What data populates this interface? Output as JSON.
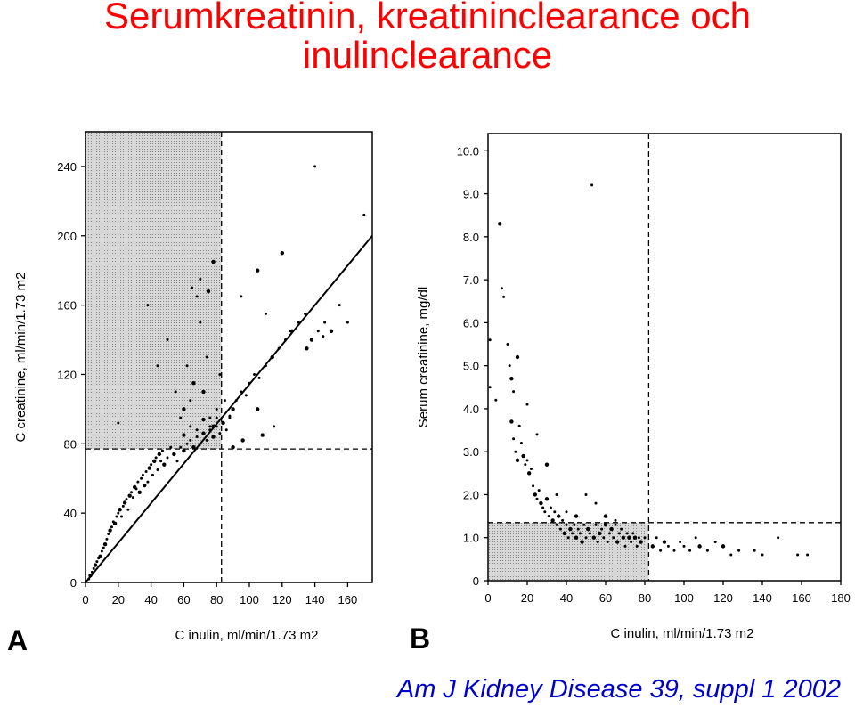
{
  "slide": {
    "title_line1": "Serumkreatinin, kreatininclearance och",
    "title_line2": "inulinclearance",
    "citation": "Am J Kidney Disease 39, suppl 1 2002",
    "title_color": "#ff0000",
    "citation_color": "#0000cc"
  },
  "chart_data": [
    {
      "type": "scatter",
      "panel_label": "A",
      "xlabel": "C inulin, ml/min/1.73 m2",
      "ylabel": "C creatinine, ml/min/1.73 m2",
      "xlim": [
        0,
        175
      ],
      "ylim": [
        0,
        260
      ],
      "x_ticks": [
        0,
        20,
        40,
        60,
        80,
        100,
        120,
        140,
        160
      ],
      "y_ticks": [
        0,
        40,
        80,
        120,
        160,
        200,
        240
      ],
      "reference_x": 83,
      "reference_y": 77,
      "regression_line": [
        [
          0,
          0
        ],
        [
          175,
          200
        ]
      ],
      "shaded_region": {
        "x": [
          0,
          83
        ],
        "y": [
          77,
          260
        ]
      },
      "points": [
        [
          2,
          2
        ],
        [
          3,
          4
        ],
        [
          4,
          6
        ],
        [
          5,
          8
        ],
        [
          6,
          10
        ],
        [
          7,
          12
        ],
        [
          8,
          14
        ],
        [
          9,
          15
        ],
        [
          10,
          18
        ],
        [
          11,
          20
        ],
        [
          12,
          22
        ],
        [
          13,
          25
        ],
        [
          14,
          28
        ],
        [
          15,
          30
        ],
        [
          16,
          32
        ],
        [
          17,
          35
        ],
        [
          18,
          34
        ],
        [
          19,
          38
        ],
        [
          20,
          40
        ],
        [
          21,
          42
        ],
        [
          22,
          38
        ],
        [
          23,
          44
        ],
        [
          24,
          46
        ],
        [
          25,
          48
        ],
        [
          26,
          42
        ],
        [
          27,
          50
        ],
        [
          28,
          52
        ],
        [
          29,
          49
        ],
        [
          30,
          55
        ],
        [
          31,
          54
        ],
        [
          32,
          58
        ],
        [
          33,
          52
        ],
        [
          34,
          60
        ],
        [
          35,
          62
        ],
        [
          36,
          56
        ],
        [
          37,
          64
        ],
        [
          38,
          58
        ],
        [
          39,
          66
        ],
        [
          40,
          68
        ],
        [
          41,
          62
        ],
        [
          42,
          70
        ],
        [
          43,
          72
        ],
        [
          44,
          65
        ],
        [
          45,
          74
        ],
        [
          46,
          70
        ],
        [
          47,
          76
        ],
        [
          48,
          68
        ],
        [
          50,
          72
        ],
        [
          52,
          78
        ],
        [
          54,
          74
        ],
        [
          56,
          70
        ],
        [
          58,
          78
        ],
        [
          60,
          76
        ],
        [
          62,
          80
        ],
        [
          64,
          82
        ],
        [
          66,
          78
        ],
        [
          68,
          84
        ],
        [
          70,
          80
        ],
        [
          72,
          86
        ],
        [
          74,
          82
        ],
        [
          76,
          88
        ],
        [
          78,
          84
        ],
        [
          80,
          90
        ],
        [
          82,
          86
        ],
        [
          84,
          92
        ],
        [
          86,
          88
        ],
        [
          88,
          96
        ],
        [
          90,
          100
        ],
        [
          92,
          105
        ],
        [
          95,
          110
        ],
        [
          98,
          108
        ],
        [
          100,
          115
        ],
        [
          103,
          120
        ],
        [
          106,
          118
        ],
        [
          110,
          125
        ],
        [
          114,
          130
        ],
        [
          118,
          135
        ],
        [
          122,
          140
        ],
        [
          126,
          145
        ],
        [
          130,
          150
        ],
        [
          134,
          155
        ],
        [
          138,
          140
        ],
        [
          142,
          145
        ],
        [
          146,
          150
        ],
        [
          150,
          145
        ],
        [
          155,
          160
        ],
        [
          160,
          150
        ],
        [
          20,
          92
        ],
        [
          38,
          160
        ],
        [
          44,
          125
        ],
        [
          50,
          140
        ],
        [
          55,
          110
        ],
        [
          58,
          95
        ],
        [
          60,
          100
        ],
        [
          62,
          125
        ],
        [
          64,
          105
        ],
        [
          66,
          115
        ],
        [
          68,
          165
        ],
        [
          70,
          150
        ],
        [
          72,
          110
        ],
        [
          74,
          130
        ],
        [
          76,
          95
        ],
        [
          78,
          90
        ],
        [
          80,
          100
        ],
        [
          82,
          120
        ],
        [
          65,
          170
        ],
        [
          70,
          175
        ],
        [
          75,
          168
        ],
        [
          78,
          185
        ],
        [
          60,
          85
        ],
        [
          64,
          90
        ],
        [
          68,
          88
        ],
        [
          72,
          94
        ],
        [
          76,
          90
        ],
        [
          80,
          95
        ],
        [
          85,
          105
        ],
        [
          88,
          95
        ],
        [
          95,
          165
        ],
        [
          105,
          180
        ],
        [
          120,
          190
        ],
        [
          140,
          240
        ],
        [
          170,
          212
        ],
        [
          110,
          155
        ],
        [
          125,
          145
        ],
        [
          135,
          135
        ],
        [
          145,
          142
        ],
        [
          105,
          100
        ],
        [
          115,
          90
        ],
        [
          96,
          82
        ],
        [
          108,
          85
        ],
        [
          90,
          78
        ]
      ]
    },
    {
      "type": "scatter",
      "panel_label": "B",
      "xlabel": "C inulin, ml/min/1.73 m2",
      "ylabel": "Serum creatinine, mg/dl",
      "xlim": [
        0,
        180
      ],
      "ylim": [
        0,
        10.4
      ],
      "x_ticks": [
        0,
        20,
        40,
        60,
        80,
        100,
        120,
        140,
        160,
        180
      ],
      "y_ticks": [
        0,
        1.0,
        2.0,
        3.0,
        4.0,
        5.0,
        6.0,
        7.0,
        8.0,
        9.0,
        10.0
      ],
      "y_tick_labels": [
        "0",
        "1.0",
        "2.0",
        "3.0",
        "4.0",
        "5.0",
        "6.0",
        "7.0",
        "8.0",
        "9.0",
        "10.0"
      ],
      "reference_x": 82,
      "reference_y": 1.35,
      "shaded_region": {
        "x": [
          0,
          82
        ],
        "y": [
          0,
          1.35
        ]
      },
      "points": [
        [
          1,
          5.6
        ],
        [
          1,
          4.5
        ],
        [
          4,
          4.2
        ],
        [
          6,
          8.3
        ],
        [
          7,
          6.8
        ],
        [
          8,
          6.6
        ],
        [
          10,
          5.5
        ],
        [
          11,
          5.0
        ],
        [
          12,
          4.7
        ],
        [
          13,
          4.4
        ],
        [
          12,
          3.7
        ],
        [
          13,
          3.3
        ],
        [
          14,
          3.0
        ],
        [
          15,
          2.8
        ],
        [
          16,
          3.6
        ],
        [
          17,
          3.2
        ],
        [
          18,
          2.9
        ],
        [
          19,
          2.7
        ],
        [
          20,
          2.8
        ],
        [
          21,
          2.5
        ],
        [
          22,
          2.6
        ],
        [
          23,
          2.2
        ],
        [
          24,
          2.0
        ],
        [
          25,
          1.9
        ],
        [
          26,
          2.1
        ],
        [
          27,
          1.8
        ],
        [
          28,
          1.7
        ],
        [
          29,
          1.6
        ],
        [
          30,
          1.9
        ],
        [
          31,
          1.5
        ],
        [
          32,
          1.7
        ],
        [
          33,
          1.4
        ],
        [
          34,
          1.6
        ],
        [
          35,
          1.3
        ],
        [
          36,
          1.5
        ],
        [
          37,
          1.2
        ],
        [
          38,
          1.4
        ],
        [
          39,
          1.1
        ],
        [
          40,
          1.3
        ],
        [
          41,
          1.0
        ],
        [
          42,
          1.2
        ],
        [
          43,
          1.1
        ],
        [
          44,
          1.3
        ],
        [
          45,
          1.0
        ],
        [
          46,
          1.2
        ],
        [
          47,
          1.1
        ],
        [
          48,
          0.9
        ],
        [
          49,
          1.3
        ],
        [
          50,
          1.0
        ],
        [
          51,
          1.2
        ],
        [
          52,
          1.1
        ],
        [
          53,
          9.2
        ],
        [
          54,
          1.0
        ],
        [
          55,
          1.3
        ],
        [
          56,
          0.9
        ],
        [
          57,
          1.1
        ],
        [
          58,
          1.2
        ],
        [
          59,
          1.0
        ],
        [
          60,
          1.3
        ],
        [
          61,
          0.9
        ],
        [
          62,
          1.1
        ],
        [
          63,
          1.2
        ],
        [
          64,
          1.0
        ],
        [
          65,
          1.3
        ],
        [
          66,
          0.9
        ],
        [
          67,
          1.1
        ],
        [
          68,
          1.2
        ],
        [
          69,
          1.0
        ],
        [
          70,
          0.8
        ],
        [
          71,
          1.1
        ],
        [
          72,
          1.0
        ],
        [
          73,
          0.9
        ],
        [
          74,
          1.1
        ],
        [
          75,
          1.0
        ],
        [
          76,
          0.8
        ],
        [
          77,
          1.0
        ],
        [
          78,
          0.9
        ],
        [
          80,
          1.0
        ],
        [
          84,
          0.8
        ],
        [
          86,
          1.0
        ],
        [
          88,
          0.7
        ],
        [
          90,
          0.9
        ],
        [
          92,
          0.8
        ],
        [
          95,
          0.7
        ],
        [
          98,
          0.9
        ],
        [
          100,
          0.8
        ],
        [
          103,
          0.7
        ],
        [
          106,
          1.0
        ],
        [
          108,
          0.8
        ],
        [
          112,
          0.7
        ],
        [
          116,
          0.9
        ],
        [
          120,
          0.8
        ],
        [
          124,
          0.6
        ],
        [
          128,
          0.7
        ],
        [
          136,
          0.7
        ],
        [
          140,
          0.6
        ],
        [
          148,
          1.0
        ],
        [
          158,
          0.6
        ],
        [
          163,
          0.6
        ],
        [
          30,
          2.7
        ],
        [
          35,
          2.0
        ],
        [
          40,
          1.6
        ],
        [
          45,
          1.5
        ],
        [
          50,
          2.0
        ],
        [
          55,
          1.8
        ],
        [
          60,
          1.5
        ],
        [
          65,
          1.4
        ],
        [
          20,
          4.1
        ],
        [
          25,
          3.4
        ],
        [
          15,
          5.2
        ]
      ]
    }
  ]
}
